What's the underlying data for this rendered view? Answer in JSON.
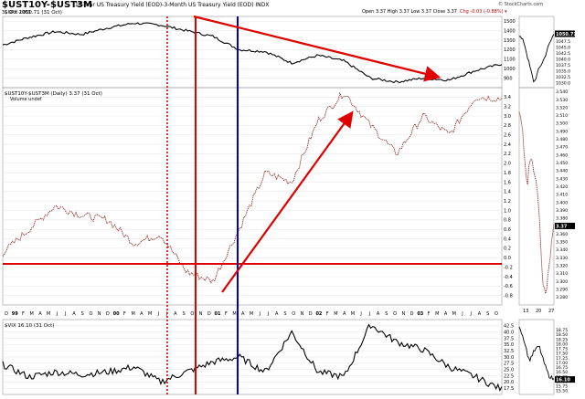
{
  "header": {
    "symbol": "$UST10Y-$UST3M",
    "description": "10-Year US Treasury Yield (EOD)-3-Month US Treasury Yield (EOD) INDX",
    "watermark": "© StockCharts.com",
    "date": "31-Oct-2003",
    "ohlc": "Open 3.37  High 3.37  Low 3.37  Close 3.37",
    "change": "Chg -0.03 (-0.88%) ▾"
  },
  "chart_data": [
    {
      "type": "line",
      "title": "$SPX 1050.71 (31 Oct)",
      "ylim": [
        800,
        1550
      ],
      "yticks": [
        "1500",
        "1400",
        "1300",
        "1200",
        "1100",
        "1000",
        "900"
      ],
      "last_value_badge": "1050.71",
      "x": [
        "1999-01",
        "1999-04",
        "1999-07",
        "1999-10",
        "2000-01",
        "2000-04",
        "2000-07",
        "2000-10",
        "2001-01",
        "2001-04",
        "2001-07",
        "2001-10",
        "2002-01",
        "2002-04",
        "2002-07",
        "2002-10",
        "2003-01",
        "2003-04",
        "2003-07",
        "2003-10"
      ],
      "values": [
        1250,
        1330,
        1390,
        1360,
        1430,
        1480,
        1460,
        1400,
        1340,
        1200,
        1180,
        1060,
        1140,
        1080,
        900,
        860,
        900,
        880,
        980,
        1050
      ],
      "zoom": {
        "x_ticks": [
          "13",
          "20",
          "27"
        ],
        "ylim": [
          1028,
          1058
        ],
        "yticks": [
          "1047.5",
          "1045.0",
          "1042.5",
          "1040.0",
          "1037.5",
          "1035.0",
          "1032.5",
          "1030.0"
        ],
        "values": [
          1050,
          1047,
          1038,
          1030,
          1036,
          1040,
          1046,
          1050.7
        ]
      }
    },
    {
      "type": "line",
      "title": "$UST10Y-$UST3M (Daily) 3.37 (31 Oct)",
      "legend": "Volume undef",
      "ylim": [
        -1.0,
        3.6
      ],
      "yticks": [
        "3.6",
        "3.4",
        "3.2",
        "3.0",
        "2.8",
        "2.6",
        "2.4",
        "2.2",
        "2.0",
        "1.8",
        "1.6",
        "1.4",
        "1.2",
        "1.0",
        "0.8",
        "0.6",
        "0.4",
        "0.2",
        "0.0",
        "-0.2",
        "-0.4",
        "-0.6",
        "-0.8"
      ],
      "last_value_badge": "3.37",
      "x": [
        "1999-01",
        "1999-04",
        "1999-07",
        "1999-10",
        "2000-01",
        "2000-04",
        "2000-07",
        "2000-10",
        "2001-01",
        "2001-04",
        "2001-07",
        "2001-10",
        "2002-01",
        "2002-04",
        "2002-07",
        "2002-10",
        "2003-01",
        "2003-04",
        "2003-07",
        "2003-10"
      ],
      "values": [
        0.1,
        0.6,
        1.1,
        0.9,
        0.8,
        0.3,
        0.5,
        -0.3,
        -0.5,
        0.6,
        1.8,
        1.6,
        2.9,
        3.5,
        2.8,
        2.2,
        3.0,
        2.6,
        3.4,
        3.37
      ],
      "zoom": {
        "x_ticks": [
          "13",
          "20",
          "27"
        ],
        "ylim": [
          3.27,
          3.545
        ],
        "yticks": [
          "3.540",
          "3.530",
          "3.520",
          "3.510",
          "3.500",
          "3.490",
          "3.480",
          "3.470",
          "3.460",
          "3.450",
          "3.440",
          "3.430",
          "3.420",
          "3.410",
          "3.400",
          "3.390",
          "3.380",
          "3.370",
          "3.360",
          "3.350",
          "3.340",
          "3.330",
          "3.320",
          "3.310",
          "3.300",
          "3.290",
          "3.280"
        ],
        "values": [
          3.52,
          3.48,
          3.42,
          3.46,
          3.44,
          3.4,
          3.3,
          3.28,
          3.33,
          3.37
        ]
      }
    },
    {
      "type": "line",
      "title": "$VIX 16.10 (31 Oct)",
      "ylim": [
        15,
        45
      ],
      "yticks": [
        "42.5",
        "40.0",
        "37.5",
        "35.0",
        "32.5",
        "30.0",
        "27.5",
        "25.0",
        "22.5",
        "20.0",
        "17.5"
      ],
      "last_value_badge": "16.10",
      "x": [
        "1999-01",
        "1999-04",
        "1999-07",
        "1999-10",
        "2000-01",
        "2000-04",
        "2000-07",
        "2000-10",
        "2001-01",
        "2001-04",
        "2001-07",
        "2001-10",
        "2002-01",
        "2002-04",
        "2002-07",
        "2002-10",
        "2003-01",
        "2003-04",
        "2003-07",
        "2003-10"
      ],
      "values": [
        27,
        22,
        24,
        23,
        24,
        26,
        20,
        24,
        28,
        30,
        24,
        40,
        24,
        22,
        43,
        36,
        33,
        26,
        22,
        17
      ],
      "zoom": {
        "x_ticks": [
          "13",
          "20",
          "27"
        ],
        "ylim": [
          15.3,
          19.3
        ],
        "yticks": [
          "18.75",
          "18.50",
          "18.25",
          "18.00",
          "17.75",
          "17.50",
          "17.25",
          "17.00",
          "16.75",
          "16.50",
          "16.25",
          "16.00",
          "15.75",
          "15.50"
        ],
        "values": [
          19.0,
          18.2,
          17.1,
          17.6,
          17.9,
          17.0,
          16.3,
          16.1
        ]
      }
    }
  ],
  "x_axis": {
    "labels": [
      "D",
      "99",
      "F",
      "M",
      "A",
      "M",
      "J",
      "J",
      "A",
      "S",
      "O",
      "N",
      "D",
      "00",
      "F",
      "M",
      "A",
      "M",
      "J",
      "J",
      "A",
      "S",
      "O",
      "N",
      "D",
      "01",
      "F",
      "M",
      "A",
      "M",
      "J",
      "J",
      "A",
      "S",
      "O",
      "N",
      "D",
      "02",
      "F",
      "M",
      "A",
      "M",
      "J",
      "J",
      "A",
      "S",
      "O",
      "N",
      "D",
      "03",
      "F",
      "M",
      "A",
      "M",
      "J",
      "J",
      "A",
      "S",
      "O"
    ]
  },
  "colors": {
    "annotation_red": "#e00000",
    "annotation_blue": "#0000c8",
    "series_black": "#000000",
    "yield_series": "#8b1a1a",
    "badge_fill": "#000000"
  }
}
